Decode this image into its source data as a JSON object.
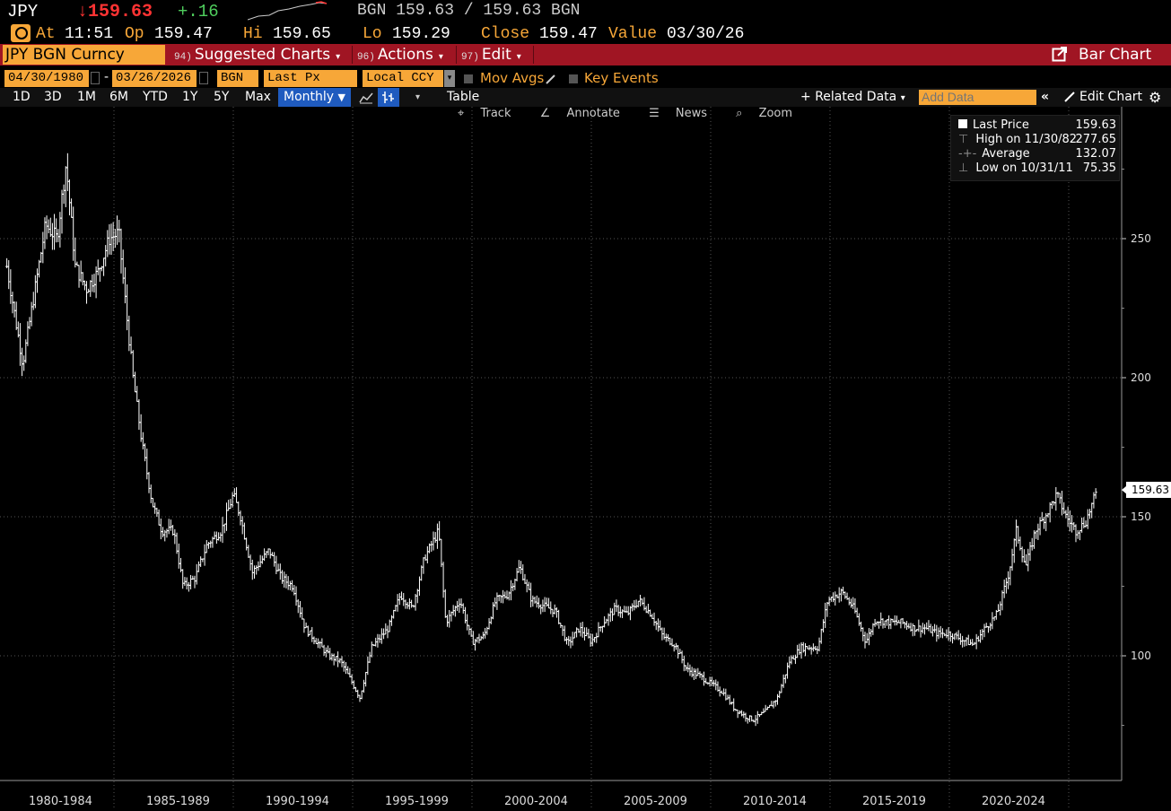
{
  "quote": {
    "ticker": "JPY",
    "price": "↓159.63",
    "change": "+.16",
    "bid_ask": "BGN 159.63 / 159.63 BGN",
    "at_label": "At",
    "at_time": "11:51",
    "op_label": "Op",
    "op_value": "159.47",
    "hi_label": "Hi",
    "hi_value": "159.65",
    "lo_label": "Lo",
    "lo_value": "159.29",
    "close_label": "Close",
    "close_value": "159.47",
    "value_label": "Value",
    "value_date": "03/30/26"
  },
  "toolbar": {
    "security": "JPY BGN Curncy",
    "suggested_num": "94)",
    "suggested": "Suggested Charts",
    "actions_num": "96)",
    "actions": "Actions",
    "edit_num": "97)",
    "edit": "Edit",
    "bar_chart": "Bar Chart"
  },
  "settings": {
    "start_date": "04/30/1980",
    "date_sep": "-",
    "end_date": "03/26/2026",
    "source": "BGN",
    "field": "Last Px",
    "currency": "Local CCY",
    "mov_avgs": "Mov Avgs",
    "key_events": "Key Events"
  },
  "periods": [
    "1D",
    "3D",
    "1M",
    "6M",
    "YTD",
    "1Y",
    "5Y",
    "Max"
  ],
  "frequency": "Monthly",
  "table_label": "Table",
  "related_data": "Related Data",
  "add_data_placeholder": "Add Data",
  "edit_chart": "Edit Chart",
  "chart_tools": {
    "track": "Track",
    "annotate": "Annotate",
    "news": "News",
    "zoom": "Zoom"
  },
  "legend": {
    "last_price_label": "Last Price",
    "last_price": "159.63",
    "high_label": "High on 11/30/82",
    "high": "277.65",
    "average_label": "Average",
    "average": "132.07",
    "low_label": "Low on 10/31/11",
    "low": "75.35"
  },
  "colors": {
    "accent": "#f7a738",
    "bar": "#a01523",
    "up": "#4fce5d",
    "active": "#1f5bbf"
  },
  "chart_data": {
    "type": "bar",
    "title": "",
    "ylabel": "",
    "ylim": [
      60,
      295
    ],
    "yticks": [
      100,
      150,
      200,
      250
    ],
    "ytick_labels": [
      "100",
      "150",
      "200",
      "250"
    ],
    "x_periods": [
      "1980-1984",
      "1985-1989",
      "1990-1994",
      "1995-1999",
      "2000-2004",
      "2005-2009",
      "2010-2014",
      "2015-2019",
      "2020-2024"
    ],
    "last_value_label": "159.63",
    "series": [
      {
        "years": [
          1980.3,
          1980.6,
          1981.0,
          1981.5,
          1982.0,
          1982.5,
          1982.9,
          1983.3,
          1983.8,
          1984.3,
          1984.8,
          1985.2,
          1985.5,
          1985.8,
          1986.2,
          1986.6,
          1987.0,
          1987.5,
          1987.9,
          1988.4,
          1988.9,
          1989.5,
          1990.0,
          1990.3,
          1990.8,
          1991.5,
          1992.0,
          1992.5,
          1993.0,
          1993.5,
          1994.0,
          1994.5,
          1995.0,
          1995.3,
          1995.8,
          1996.5,
          1997.0,
          1997.5,
          1998.0,
          1998.6,
          1998.9,
          1999.5,
          2000.0,
          2000.5,
          2001.0,
          2001.5,
          2002.0,
          2002.5,
          2003.0,
          2003.5,
          2004.0,
          2004.5,
          2005.0,
          2005.5,
          2006.0,
          2006.5,
          2007.0,
          2007.5,
          2008.0,
          2008.5,
          2009.0,
          2009.5,
          2010.0,
          2010.5,
          2011.0,
          2011.5,
          2011.8,
          2012.3,
          2012.8,
          2013.3,
          2013.8,
          2014.5,
          2014.9,
          2015.5,
          2016.0,
          2016.5,
          2016.9,
          2017.5,
          2018.0,
          2018.5,
          2019.0,
          2019.5,
          2020.0,
          2020.5,
          2021.0,
          2021.5,
          2022.0,
          2022.5,
          2022.8,
          2023.2,
          2023.6,
          2024.0,
          2024.5,
          2024.9,
          2025.3,
          2025.7,
          2026.2
        ],
        "values": [
          240,
          225,
          205,
          230,
          255,
          250,
          277,
          240,
          232,
          238,
          250,
          252,
          225,
          200,
          175,
          155,
          145,
          145,
          125,
          128,
          140,
          145,
          158,
          150,
          130,
          138,
          128,
          125,
          110,
          105,
          100,
          98,
          90,
          85,
          103,
          110,
          122,
          117,
          135,
          145,
          112,
          120,
          105,
          107,
          120,
          122,
          132,
          120,
          118,
          116,
          104,
          110,
          105,
          112,
          117,
          115,
          120,
          115,
          107,
          104,
          95,
          93,
          90,
          87,
          81,
          78,
          77,
          80,
          85,
          98,
          103,
          103,
          120,
          123,
          117,
          105,
          113,
          112,
          112,
          110,
          110,
          108,
          108,
          106,
          104,
          110,
          115,
          130,
          145,
          132,
          145,
          150,
          158,
          150,
          145,
          148,
          159.63
        ]
      }
    ]
  }
}
